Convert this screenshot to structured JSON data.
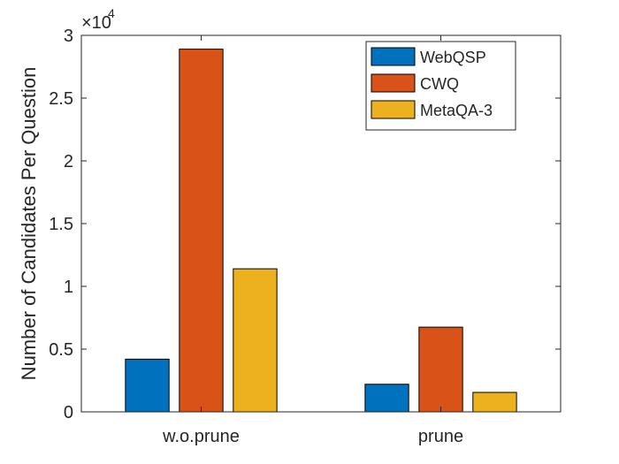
{
  "chart_data": {
    "type": "bar",
    "categories": [
      "w.o.prune",
      "prune"
    ],
    "series": [
      {
        "name": "WebQSP",
        "color": "#0072BD",
        "values": [
          4200,
          2200
        ]
      },
      {
        "name": "CWQ",
        "color": "#D95319",
        "values": [
          28900,
          6750
        ]
      },
      {
        "name": "MetaQA-3",
        "color": "#EDB120",
        "values": [
          11400,
          1550
        ]
      }
    ],
    "ylabel": "Number of Candidates Per Question",
    "xlabel": "",
    "ylim": [
      0,
      30000
    ],
    "y_ticks": [
      0,
      5000,
      10000,
      15000,
      20000,
      25000,
      30000
    ],
    "y_tick_labels": [
      "0",
      "0.5",
      "1",
      "1.5",
      "2",
      "2.5",
      "3"
    ],
    "y_exponent_base": "×10",
    "y_exponent_power": "4",
    "legend_position": "top-right",
    "grid": false
  }
}
